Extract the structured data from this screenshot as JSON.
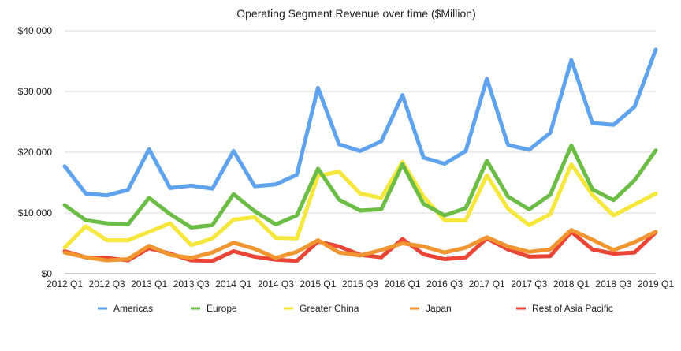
{
  "chart_data": {
    "type": "line",
    "title": "Operating Segment Revenue over time ($Million)",
    "xlabel": "",
    "ylabel": "",
    "ylim": [
      0,
      40000
    ],
    "yticks": [
      0,
      10000,
      20000,
      30000,
      40000
    ],
    "ytick_labels": [
      "$0",
      "$10,000",
      "$20,000",
      "$30,000",
      "$40,000"
    ],
    "x": [
      "2012 Q1",
      "2012 Q2",
      "2012 Q3",
      "2012 Q4",
      "2013 Q1",
      "2013 Q2",
      "2013 Q3",
      "2013 Q4",
      "2014 Q1",
      "2014 Q2",
      "2014 Q3",
      "2014 Q4",
      "2015 Q1",
      "2015 Q2",
      "2015 Q3",
      "2015 Q4",
      "2016 Q1",
      "2016 Q2",
      "2016 Q3",
      "2016 Q4",
      "2017 Q1",
      "2017 Q2",
      "2017 Q3",
      "2017 Q4",
      "2018 Q1",
      "2018 Q2",
      "2018 Q3",
      "2018 Q4",
      "2019 Q1"
    ],
    "xtick_labels": [
      "2012 Q1",
      "2012 Q3",
      "2013 Q1",
      "2013 Q3",
      "2014 Q1",
      "2014 Q3",
      "2015 Q1",
      "2015 Q3",
      "2016 Q1",
      "2016 Q3",
      "2017 Q1",
      "2017 Q3",
      "2018 Q1",
      "2018 Q3",
      "2019 Q1"
    ],
    "grid": true,
    "legend_position": "bottom",
    "series": [
      {
        "name": "Americas",
        "color": "#5fa3ee",
        "values": [
          17700,
          13200,
          12900,
          13800,
          20500,
          14100,
          14500,
          14000,
          20200,
          14400,
          14700,
          16300,
          30600,
          21300,
          20200,
          21800,
          29400,
          19100,
          18100,
          20200,
          32100,
          21200,
          20400,
          23200,
          35200,
          24800,
          24500,
          27500,
          36900
        ]
      },
      {
        "name": "Europe",
        "color": "#6cbd45",
        "values": [
          11300,
          8800,
          8300,
          8100,
          12500,
          9800,
          7600,
          8000,
          13100,
          10300,
          8100,
          9600,
          17300,
          12200,
          10400,
          10600,
          18000,
          11500,
          9600,
          10800,
          18600,
          12700,
          10600,
          13000,
          21100,
          13900,
          12100,
          15400,
          20300
        ]
      },
      {
        "name": "Greater China",
        "color": "#f6e73c",
        "values": [
          4300,
          7800,
          5500,
          5500,
          6900,
          8300,
          4700,
          5800,
          8900,
          9300,
          5900,
          5800,
          16100,
          16800,
          13200,
          12500,
          18400,
          12700,
          8800,
          8800,
          16200,
          10700,
          8000,
          9800,
          18000,
          13000,
          9600,
          11400,
          13200
        ]
      },
      {
        "name": "Japan",
        "color": "#f0952f",
        "values": [
          3500,
          2700,
          2200,
          2400,
          4600,
          3100,
          2600,
          3500,
          5100,
          4100,
          2600,
          3600,
          5500,
          3500,
          3000,
          3900,
          5000,
          4500,
          3500,
          4300,
          6000,
          4500,
          3600,
          4000,
          7200,
          5600,
          3900,
          5200,
          6900
        ]
      },
      {
        "name": "Rest of Asia Pacific",
        "color": "#ea4535",
        "values": [
          3700,
          2700,
          2600,
          2200,
          4200,
          3300,
          2200,
          2100,
          3700,
          2800,
          2300,
          2100,
          5300,
          4500,
          3100,
          2700,
          5700,
          3200,
          2400,
          2700,
          5800,
          4000,
          2800,
          2900,
          6900,
          4000,
          3300,
          3500,
          6800
        ]
      }
    ]
  }
}
